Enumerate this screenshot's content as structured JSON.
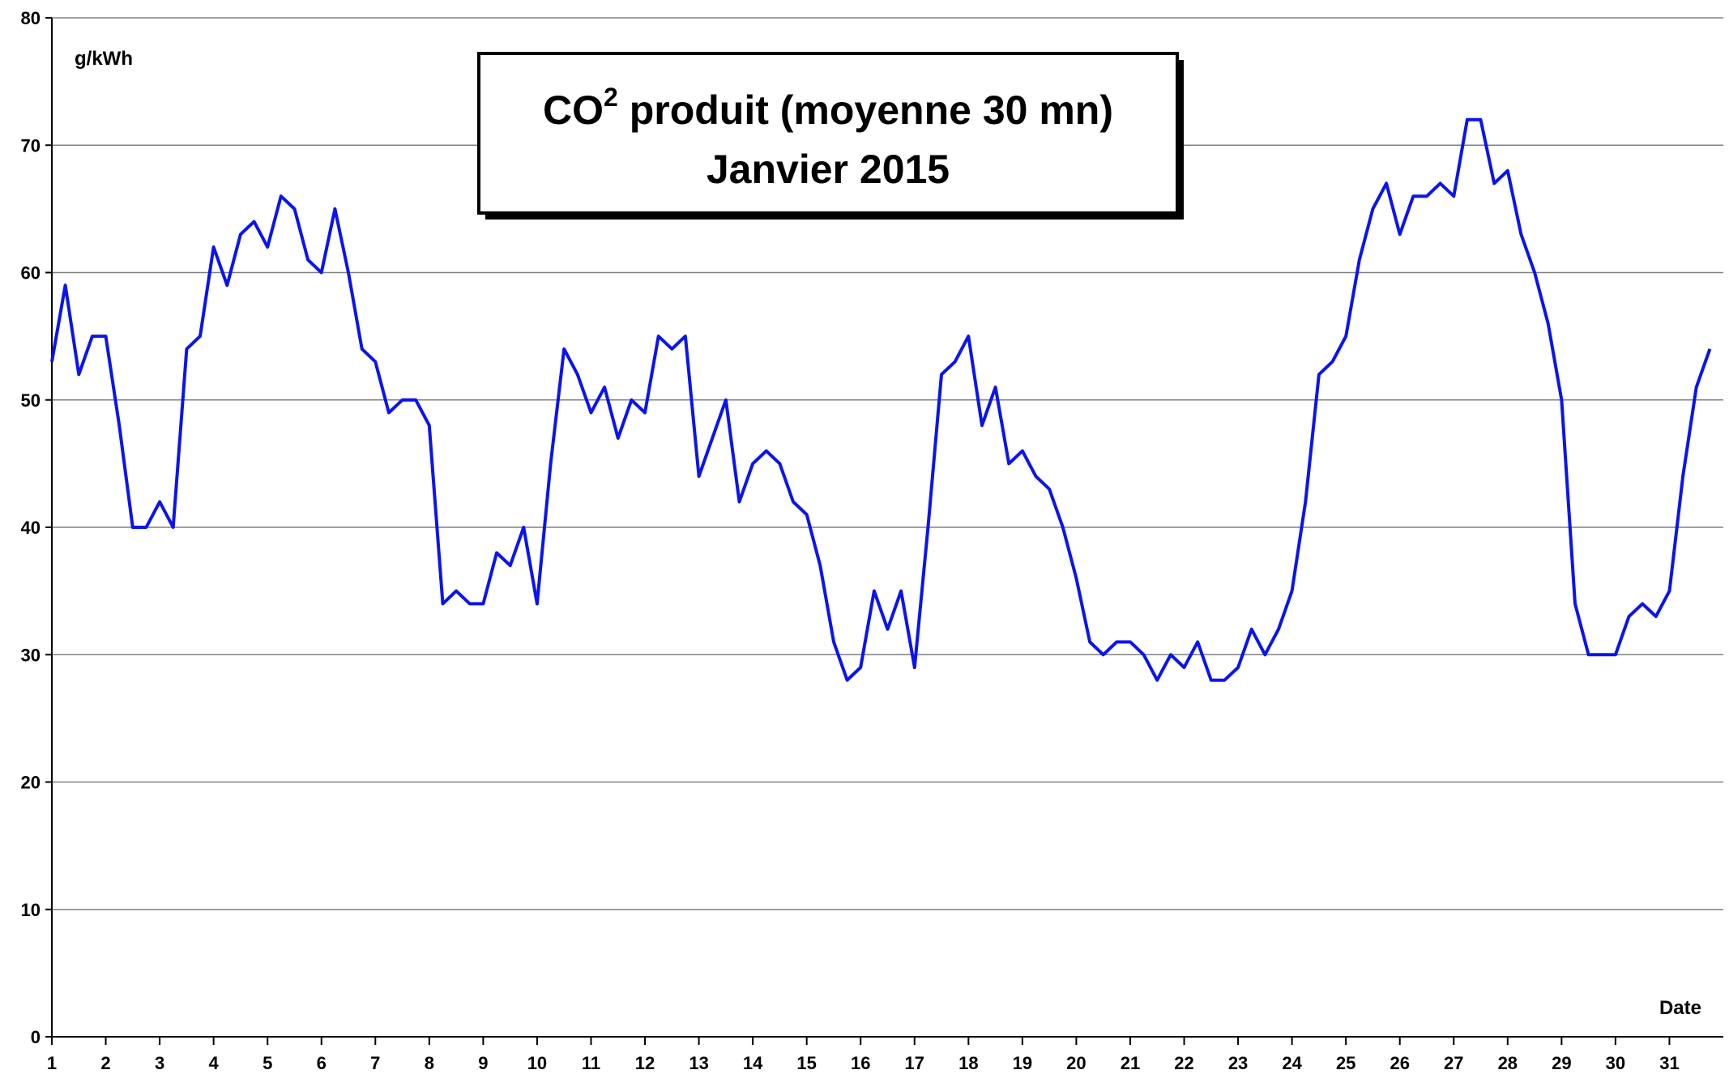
{
  "chart_data": {
    "type": "line",
    "title": {
      "text": "CO",
      "superscript": "2",
      "rest": " produit (moyenne 30 mn)"
    },
    "subtitle": "Janvier 2015",
    "y_label": "g/kWh",
    "x_label": "Date",
    "xlim": [
      1,
      32
    ],
    "xticks": [
      1,
      2,
      3,
      4,
      5,
      6,
      7,
      8,
      9,
      10,
      11,
      12,
      13,
      14,
      15,
      16,
      17,
      18,
      19,
      20,
      21,
      22,
      23,
      24,
      25,
      26,
      27,
      28,
      29,
      30,
      31
    ],
    "ylim": [
      0,
      80
    ],
    "yticks": [
      0,
      10,
      20,
      30,
      40,
      50,
      60,
      70,
      80
    ],
    "grid": true,
    "x": [
      1,
      1.25,
      1.5,
      1.75,
      2,
      2.25,
      2.5,
      2.75,
      3,
      3.25,
      3.5,
      3.75,
      4,
      4.25,
      4.5,
      4.75,
      5,
      5.25,
      5.5,
      5.75,
      6,
      6.25,
      6.5,
      6.75,
      7,
      7.25,
      7.5,
      7.75,
      8,
      8.25,
      8.5,
      8.75,
      9,
      9.25,
      9.5,
      9.75,
      10,
      10.25,
      10.5,
      10.75,
      11,
      11.25,
      11.5,
      11.75,
      12,
      12.25,
      12.5,
      12.75,
      13,
      13.25,
      13.5,
      13.75,
      14,
      14.25,
      14.5,
      14.75,
      15,
      15.25,
      15.5,
      15.75,
      16,
      16.25,
      16.5,
      16.75,
      17,
      17.25,
      17.5,
      17.75,
      18,
      18.25,
      18.5,
      18.75,
      19,
      19.25,
      19.5,
      19.75,
      20,
      20.25,
      20.5,
      20.75,
      21,
      21.25,
      21.5,
      21.75,
      22,
      22.25,
      22.5,
      22.75,
      23,
      23.25,
      23.5,
      23.75,
      24,
      24.25,
      24.5,
      24.75,
      25,
      25.25,
      25.5,
      25.75,
      26,
      26.25,
      26.5,
      26.75,
      27,
      27.25,
      27.5,
      27.75,
      28,
      28.25,
      28.5,
      28.75,
      29,
      29.25,
      29.5,
      29.75,
      30,
      30.25,
      30.5,
      30.75,
      31,
      31.25,
      31.5,
      31.75
    ],
    "series": [
      {
        "color": "#0a14f0",
        "values": [
          53,
          59,
          52,
          55,
          55,
          48,
          40,
          40,
          42,
          40,
          54,
          55,
          62,
          59,
          63,
          64,
          62,
          66,
          65,
          61,
          60,
          65,
          60,
          54,
          53,
          49,
          50,
          50,
          48,
          34,
          35,
          34,
          34,
          38,
          37,
          40,
          34,
          45,
          54,
          52,
          49,
          51,
          47,
          50,
          49,
          55,
          54,
          55,
          44,
          47,
          50,
          42,
          45,
          46,
          45,
          42,
          41,
          37,
          31,
          28,
          29,
          35,
          32,
          35,
          29,
          40,
          52,
          53,
          55,
          48,
          51,
          45,
          46,
          44,
          43,
          40,
          36,
          31,
          30,
          31,
          31,
          30,
          28,
          30,
          29,
          31,
          28,
          28,
          29,
          32,
          30,
          32,
          35,
          42,
          52,
          53,
          55,
          61,
          65,
          67,
          63,
          66,
          66,
          67,
          66,
          72,
          72,
          67,
          68,
          63,
          60,
          56,
          50,
          34,
          30,
          30,
          30,
          33,
          34,
          33,
          35,
          44,
          51,
          54
        ]
      }
    ]
  }
}
